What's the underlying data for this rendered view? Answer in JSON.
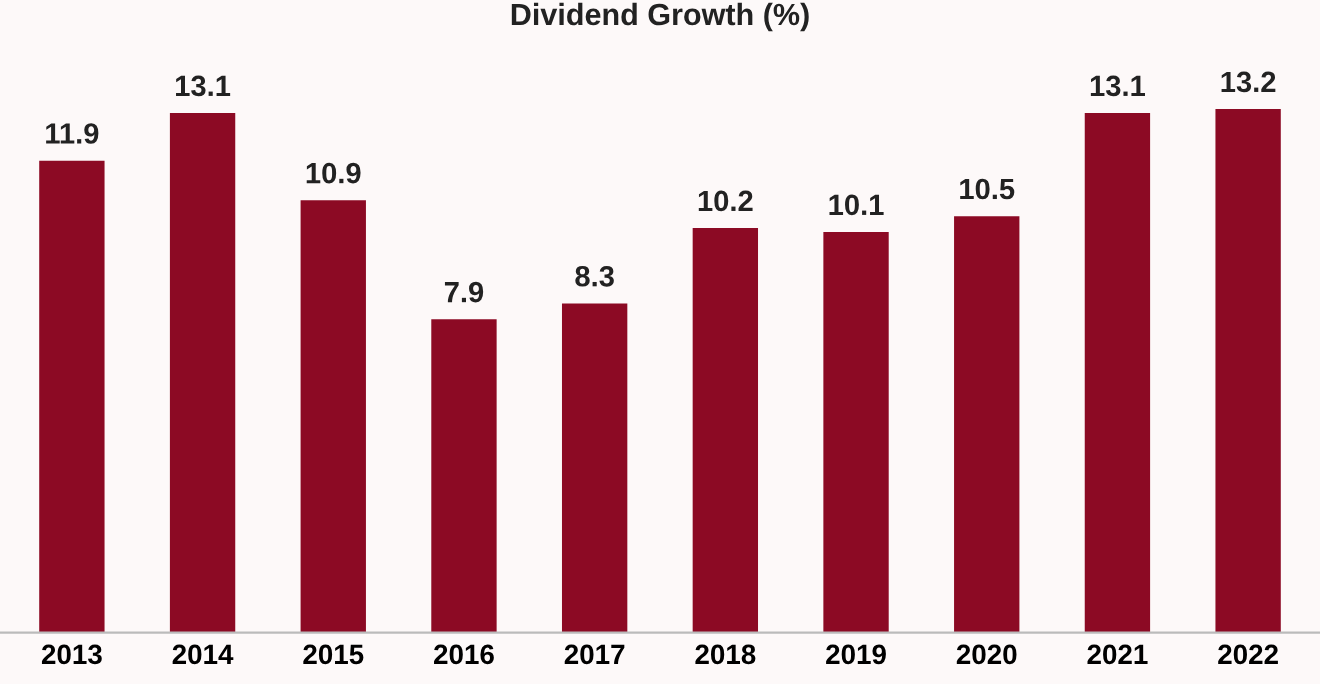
{
  "chart_data": {
    "type": "bar",
    "title": "Dividend Growth (%)",
    "categories": [
      "2013",
      "2014",
      "2015",
      "2016",
      "2017",
      "2018",
      "2019",
      "2020",
      "2021",
      "2022"
    ],
    "values": [
      11.9,
      13.1,
      10.9,
      7.9,
      8.3,
      10.2,
      10.1,
      10.5,
      13.1,
      13.2
    ],
    "color": "#8c0a24",
    "data_labels": true,
    "grid": false,
    "legend": false
  }
}
